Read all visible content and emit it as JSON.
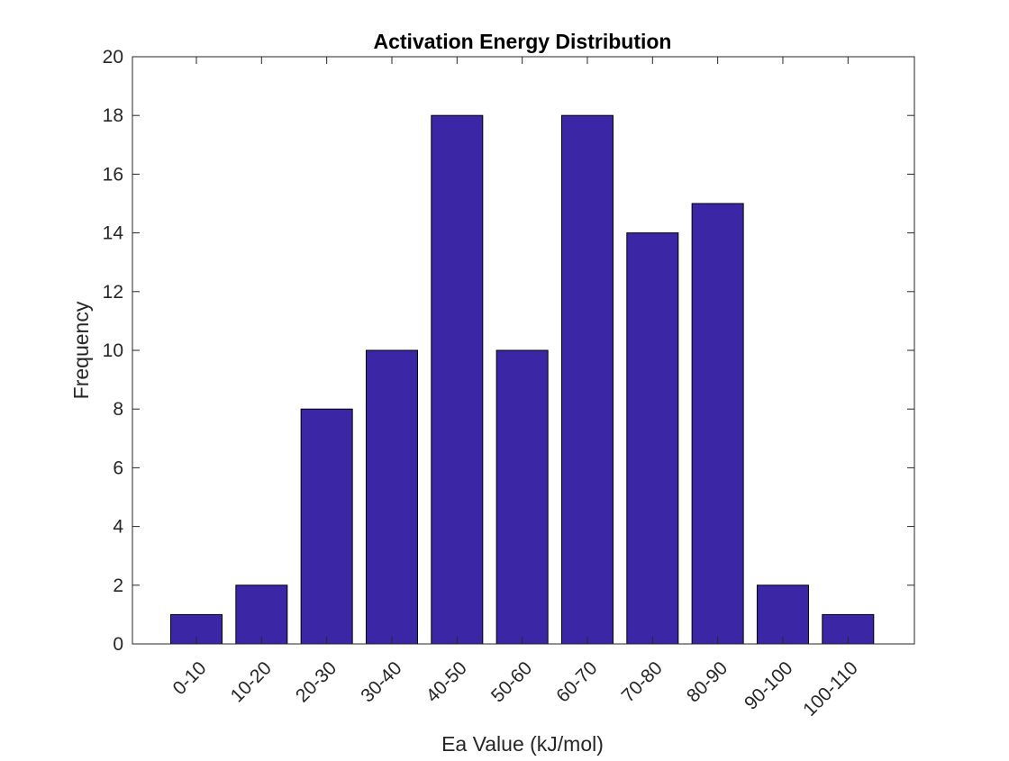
{
  "chart_data": {
    "type": "bar",
    "title": "Activation Energy Distribution",
    "xlabel": "Ea Value (kJ/mol)",
    "ylabel": "Frequency",
    "categories": [
      "0-10",
      "10-20",
      "20-30",
      "30-40",
      "40-50",
      "50-60",
      "60-70",
      "70-80",
      "80-90",
      "90-100",
      "100-110"
    ],
    "values": [
      1,
      2,
      8,
      10,
      18,
      10,
      18,
      14,
      15,
      2,
      1
    ],
    "ylim": [
      0,
      20
    ],
    "yticks": [
      0,
      2,
      4,
      6,
      8,
      10,
      12,
      14,
      16,
      18,
      20
    ],
    "grid": false,
    "bar_color": "#3b27a6",
    "bar_edge_color": "#000000"
  }
}
